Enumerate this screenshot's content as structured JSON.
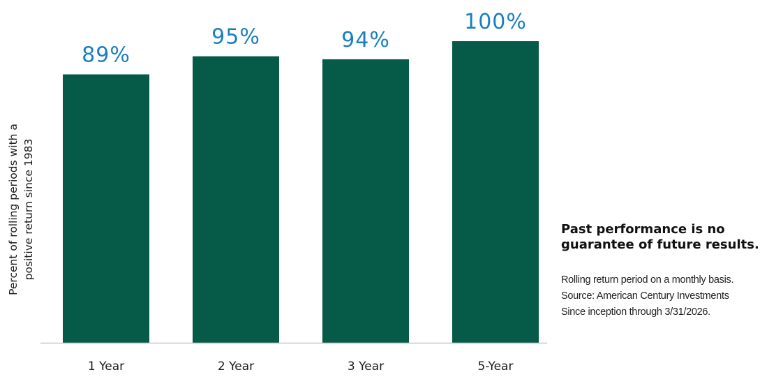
{
  "chart_data": {
    "type": "bar",
    "categories": [
      "1 Year",
      "2 Year",
      "3 Year",
      "5-Year"
    ],
    "values": [
      89,
      95,
      94,
      100
    ],
    "data_labels": [
      "89%",
      "95%",
      "94%",
      "100%"
    ],
    "title": "",
    "xlabel": "",
    "ylabel_lines": [
      "Percent of rolling periods with a",
      "positive return since 1983"
    ],
    "ylim": [
      0,
      100
    ],
    "grid": false,
    "legend": "none",
    "bar_color": "#055a48",
    "label_color": "#1a7fc1",
    "axis_color": "#c8c8c8"
  },
  "notes": {
    "disclaimer_lines": [
      "Past performance is no",
      "guarantee of future results."
    ],
    "footnotes": [
      "Rolling return period on a monthly basis.",
      "Source: American Century Investments",
      "Since inception through 3/31/2026."
    ]
  }
}
